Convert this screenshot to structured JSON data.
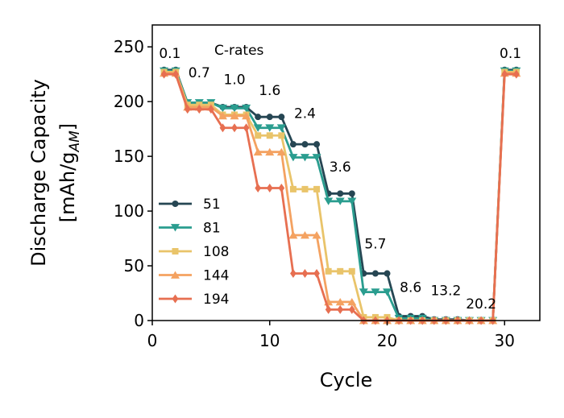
{
  "chart_data": {
    "type": "line",
    "xlabel": "Cycle",
    "ylabel_line1": "Discharge Capacity",
    "ylabel_line2_prefix": "[mAh/g",
    "ylabel_line2_sub": "AM",
    "ylabel_line2_suffix": "]",
    "xlim": [
      0,
      33
    ],
    "ylim": [
      0,
      270
    ],
    "xticks": [
      0,
      10,
      20,
      30
    ],
    "yticks": [
      0,
      50,
      100,
      150,
      200,
      250
    ],
    "annotation_title": "C-rates",
    "rate_annotations": [
      {
        "text": "0.1",
        "x": 1.5,
        "y": 240
      },
      {
        "text": "0.7",
        "x": 4,
        "y": 222
      },
      {
        "text": "1.0",
        "x": 7,
        "y": 216
      },
      {
        "text": "1.6",
        "x": 10,
        "y": 206
      },
      {
        "text": "2.4",
        "x": 13,
        "y": 185
      },
      {
        "text": "3.6",
        "x": 16,
        "y": 136
      },
      {
        "text": "5.7",
        "x": 19,
        "y": 66
      },
      {
        "text": "8.6",
        "x": 22,
        "y": 26
      },
      {
        "text": "13.2",
        "x": 25,
        "y": 23
      },
      {
        "text": "20.2",
        "x": 28,
        "y": 11
      },
      {
        "text": "0.1",
        "x": 30.5,
        "y": 240
      }
    ],
    "legend_position": "lower-left",
    "x": [
      1,
      2,
      3,
      4,
      5,
      6,
      7,
      8,
      9,
      10,
      11,
      12,
      13,
      14,
      15,
      16,
      17,
      18,
      19,
      20,
      21,
      22,
      23,
      24,
      25,
      26,
      27,
      28,
      29,
      30,
      31
    ],
    "series": [
      {
        "name": "51",
        "color": "#264653",
        "marker": "circle",
        "values": [
          229,
          229,
          199,
          199,
          199,
          195,
          195,
          195,
          186,
          186,
          186,
          161,
          161,
          161,
          116,
          116,
          116,
          43,
          43,
          43,
          4,
          4,
          4,
          1,
          1,
          1,
          0,
          0,
          0,
          229,
          229
        ]
      },
      {
        "name": "81",
        "color": "#2a9d8f",
        "marker": "triangle-down",
        "values": [
          228,
          228,
          199,
          199,
          199,
          194,
          194,
          194,
          176,
          176,
          176,
          149,
          149,
          149,
          109,
          109,
          109,
          26,
          26,
          26,
          2,
          2,
          2,
          0,
          0,
          0,
          0,
          0,
          0,
          228,
          228
        ]
      },
      {
        "name": "108",
        "color": "#e9c46a",
        "marker": "square",
        "values": [
          227,
          227,
          197,
          197,
          197,
          188,
          188,
          188,
          169,
          169,
          169,
          120,
          120,
          120,
          45,
          45,
          45,
          3,
          3,
          3,
          0,
          0,
          0,
          0,
          0,
          0,
          0,
          0,
          0,
          227,
          227
        ]
      },
      {
        "name": "144",
        "color": "#f4a261",
        "marker": "triangle-up",
        "values": [
          226,
          226,
          195,
          195,
          195,
          187,
          187,
          187,
          154,
          154,
          154,
          78,
          78,
          78,
          17,
          17,
          17,
          0,
          0,
          0,
          0,
          0,
          0,
          0,
          0,
          0,
          0,
          0,
          0,
          226,
          226
        ]
      },
      {
        "name": "194",
        "color": "#e76f51",
        "marker": "diamond",
        "values": [
          225,
          225,
          193,
          193,
          193,
          176,
          176,
          176,
          121,
          121,
          121,
          43,
          43,
          43,
          10,
          10,
          10,
          0,
          0,
          0,
          0,
          0,
          0,
          0,
          0,
          0,
          0,
          0,
          0,
          225,
          225
        ]
      }
    ]
  }
}
